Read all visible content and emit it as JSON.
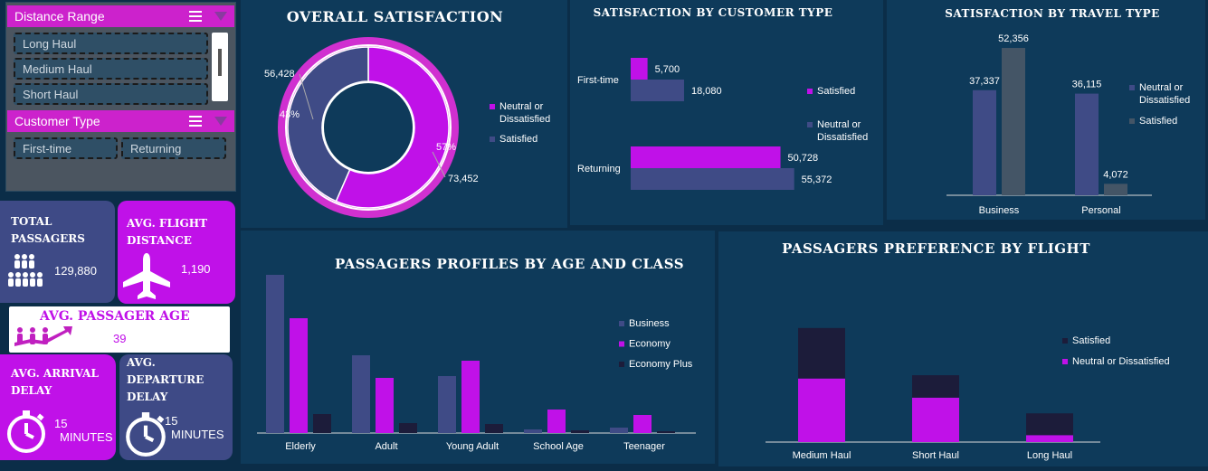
{
  "slicers": {
    "distance": {
      "title": "Distance Range",
      "items": [
        "Long Haul",
        "Medium Haul",
        "Short Haul"
      ]
    },
    "customer": {
      "title": "Customer Type",
      "items": [
        "First-time",
        "Returning"
      ]
    }
  },
  "kpis": {
    "total_passengers": {
      "label": "TOTAL PASSAGERS",
      "value": "129,880"
    },
    "avg_flight_distance": {
      "label": "AVG. FLIGHT DISTANCE",
      "value": "1,190"
    },
    "avg_passenger_age": {
      "label": "AVG. PASSAGER AGE",
      "value": "39"
    },
    "avg_arrival_delay": {
      "label": "AVG. ARRIVAL DELAY",
      "value": "15",
      "unit": "MINUTES"
    },
    "avg_departure_delay": {
      "label": "AVG. DEPARTURE DELAY",
      "value": "15",
      "unit": "MINUTES"
    }
  },
  "colors": {
    "satisfied": "#3f4b86",
    "neutral": "#c011e8",
    "pink": "#d030d0",
    "dark": "#1c1c3a",
    "panel": "#0e3a5a"
  },
  "chart_data": [
    {
      "id": "overall",
      "type": "pie",
      "title": "OVERALL SATISFACTION",
      "labels": [
        "Neutral or Dissatisfied",
        "Satisfied"
      ],
      "values": [
        73452,
        56428
      ],
      "value_labels": [
        "73,452",
        "56,428"
      ],
      "percent_labels": [
        "57%",
        "43%"
      ],
      "legend": "right"
    },
    {
      "id": "customer_type",
      "type": "bar",
      "orientation": "horizontal",
      "title": "SATISFACTION BY CUSTOMER TYPE",
      "categories": [
        "First-time",
        "Returning"
      ],
      "series": [
        {
          "name": "Satisfied",
          "values": [
            5700,
            50728
          ],
          "labels": [
            "5,700",
            "50,728"
          ]
        },
        {
          "name": "Neutral or Dissatisfied",
          "values": [
            18080,
            55372
          ],
          "labels": [
            "18,080",
            "55,372"
          ]
        }
      ],
      "legend": "right"
    },
    {
      "id": "travel_type",
      "type": "bar",
      "title": "SATISFACTION BY TRAVEL TYPE",
      "categories": [
        "Business",
        "Personal"
      ],
      "series": [
        {
          "name": "Neutral or Dissatisfied",
          "values": [
            37337,
            36115
          ],
          "labels": [
            "37,337",
            "36,115"
          ]
        },
        {
          "name": "Satisfied",
          "values": [
            52356,
            4072
          ],
          "labels": [
            "52,356",
            "4,072"
          ]
        }
      ],
      "legend": "right"
    },
    {
      "id": "age_class",
      "type": "bar",
      "title": "PASSAGERS PROFILES BY AGE AND CLASS",
      "categories": [
        "Elderly",
        "Adult",
        "Young Adult",
        "School Age",
        "Teenager"
      ],
      "series": [
        {
          "name": "Business",
          "values": [
            17500,
            8600,
            6300,
            400,
            600
          ]
        },
        {
          "name": "Economy",
          "values": [
            12700,
            6100,
            8000,
            2600,
            2000
          ]
        },
        {
          "name": "Economy Plus",
          "values": [
            2100,
            1100,
            1000,
            300,
            200
          ]
        }
      ],
      "legend": "right"
    },
    {
      "id": "flight_pref",
      "type": "bar",
      "stacked": true,
      "title": "PASSAGERS PREFERENCE BY FLIGHT",
      "categories": [
        "Medium Haul",
        "Short Haul",
        "Long Haul"
      ],
      "series": [
        {
          "name": "Neutral or Dissatisfied",
          "values": [
            48500,
            33900,
            5300
          ]
        },
        {
          "name": "Satisfied",
          "values": [
            38500,
            17100,
            16600
          ]
        }
      ],
      "legend": "right"
    }
  ]
}
